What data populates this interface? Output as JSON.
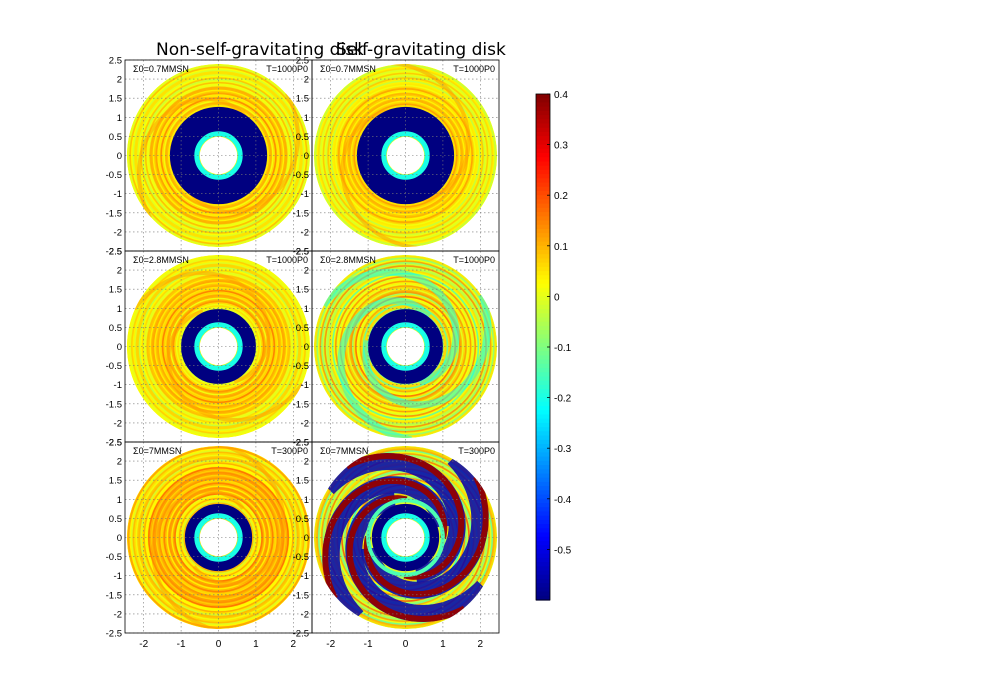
{
  "titles": {
    "left": "Non-self-gravitating disk",
    "right": "Self-gravitating disk"
  },
  "chart_data": {
    "type": "heatmap",
    "description_free": true,
    "layout": "3 rows x 2 columns of polar disk maps with shared colorbar",
    "x_ticks": [
      "-2",
      "-1",
      "0",
      "1",
      "2"
    ],
    "y_ticks": [
      "2.5",
      "2",
      "1.5",
      "1",
      "0.5",
      "0",
      "-0.5",
      "-1",
      "-1.5",
      "-2",
      "-2.5"
    ],
    "xlim": [
      -2.5,
      2.5
    ],
    "ylim": [
      -2.5,
      2.5
    ],
    "panels": [
      {
        "row": 0,
        "col": 0,
        "label_left": "Σ0=0.7MMSN",
        "label_right": "T=1000P0",
        "gap_r": 0.5,
        "ring_in": 0.6,
        "ring_out": 1.3,
        "ring_value": -0.6,
        "perturbation": "weak",
        "bg_value": 0.02
      },
      {
        "row": 0,
        "col": 1,
        "label_left": "Σ0=0.7MMSN",
        "label_right": "T=1000P0",
        "gap_r": 0.5,
        "ring_in": 0.6,
        "ring_out": 1.3,
        "ring_value": -0.6,
        "perturbation": "weak",
        "bg_value": 0.02
      },
      {
        "row": 1,
        "col": 0,
        "label_left": "Σ0=2.8MMSN",
        "label_right": "T=1000P0",
        "gap_r": 0.5,
        "ring_in": 0.6,
        "ring_out": 1.0,
        "ring_value": -0.6,
        "perturbation": "weak",
        "bg_value": 0.03
      },
      {
        "row": 1,
        "col": 1,
        "label_left": "Σ0=2.8MMSN",
        "label_right": "T=1000P0",
        "gap_r": 0.5,
        "ring_in": 0.6,
        "ring_out": 1.0,
        "ring_value": -0.6,
        "perturbation": "moderate",
        "bg_value": 0.0
      },
      {
        "row": 2,
        "col": 0,
        "label_left": "Σ0=7MMSN",
        "label_right": "T=300P0",
        "gap_r": 0.5,
        "ring_in": 0.6,
        "ring_out": 0.9,
        "ring_value": -0.6,
        "perturbation": "weak",
        "bg_value": 0.05
      },
      {
        "row": 2,
        "col": 1,
        "label_left": "Σ0=7MMSN",
        "label_right": "T=300P0",
        "gap_r": 0.5,
        "ring_in": 0.6,
        "ring_out": 0.9,
        "ring_value": -0.3,
        "perturbation": "strong-spiral",
        "bg_value": 0.0
      }
    ],
    "colorbar": {
      "min": -0.6,
      "max": 0.4,
      "ticks": [
        "0.4",
        "0.3",
        "0.2",
        "0.1",
        "0",
        "-0.1",
        "-0.2",
        "-0.3",
        "-0.4",
        "-0.5"
      ],
      "tick_values": [
        0.4,
        0.3,
        0.2,
        0.1,
        0,
        -0.1,
        -0.2,
        -0.3,
        -0.4,
        -0.5
      ],
      "colormap": "jet"
    },
    "grid": true
  }
}
